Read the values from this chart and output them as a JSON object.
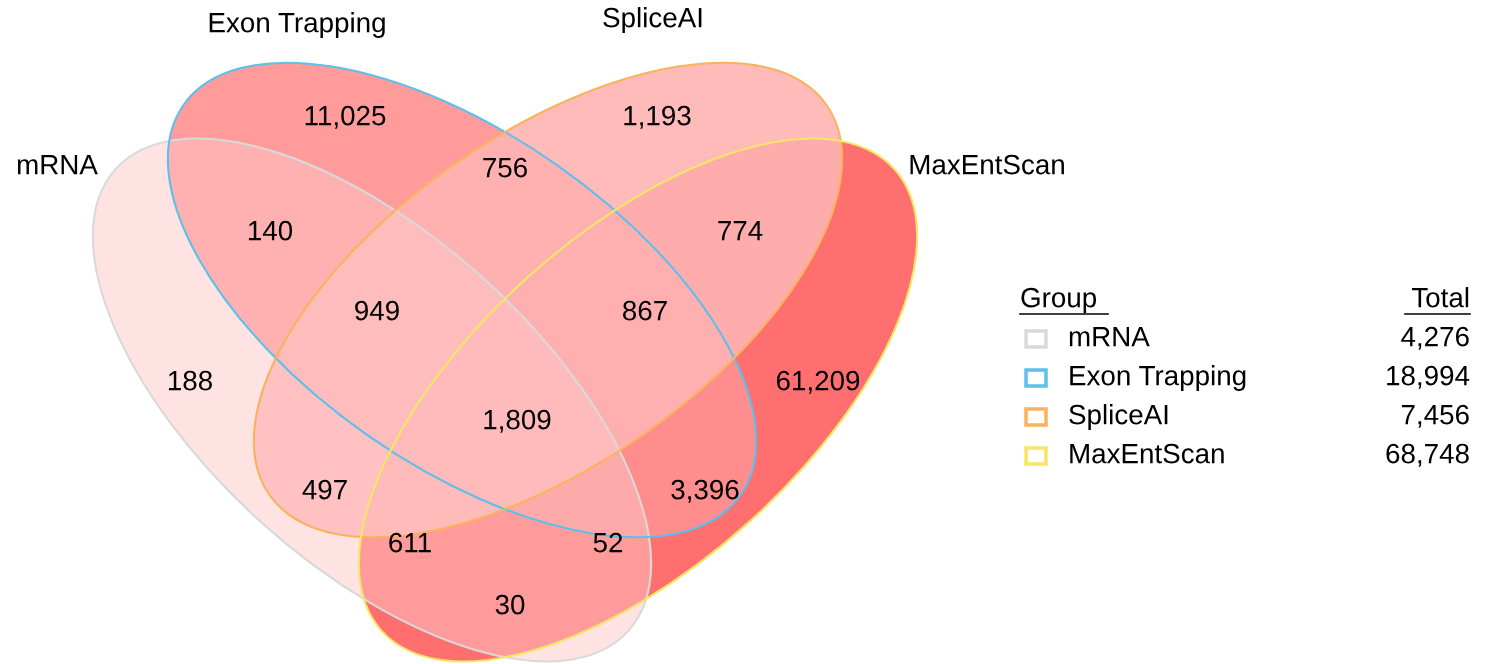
{
  "chart_data": {
    "type": "other",
    "categories": [
      "mRNA",
      "Exon Trapping",
      "SpliceAI",
      "MaxEntScan"
    ],
    "values": [
      4276,
      18994,
      7456,
      68748
    ],
    "value_labels": [
      "4,276",
      "18,994",
      "7,456",
      "68,748"
    ],
    "colors": [
      "#d9d9d9",
      "#5bc0eb",
      "#f9b35a",
      "#f5e663"
    ],
    "legend_title": "Group",
    "annotations": [
      "188",
      "11,025",
      "1,193",
      "61,209",
      "140",
      "756",
      "774",
      "30",
      "497",
      "3,396",
      "949",
      "867",
      "611",
      "52",
      "1,809",
      "Total"
    ]
  }
}
